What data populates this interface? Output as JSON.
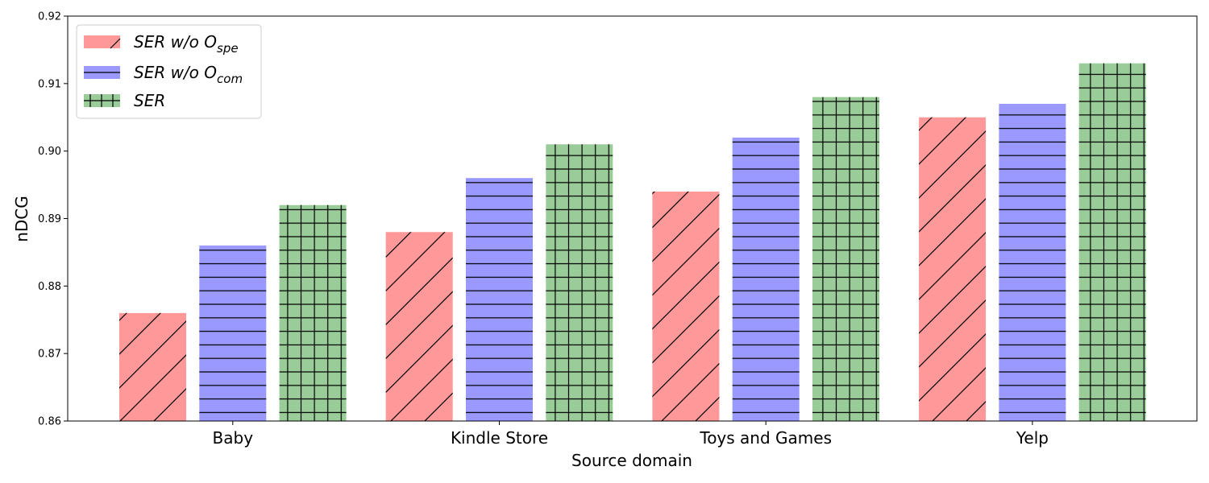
{
  "chart_data": {
    "type": "bar",
    "xlabel": "Source domain",
    "ylabel": "nDCG",
    "ylim": [
      0.86,
      0.92
    ],
    "yticks": [
      "0.86",
      "0.87",
      "0.88",
      "0.89",
      "0.90",
      "0.91",
      "0.92"
    ],
    "categories": [
      "Baby",
      "Kindle Store",
      "Toys and Games",
      "Yelp"
    ],
    "series": [
      {
        "name": "SER w/o O",
        "sub": "spe",
        "color": "#ff9999",
        "hatch": "diagonal",
        "values": [
          0.876,
          0.888,
          0.894,
          0.905
        ]
      },
      {
        "name": "SER w/o O",
        "sub": "com",
        "color": "#9999ff",
        "hatch": "horizontal",
        "values": [
          0.886,
          0.896,
          0.902,
          0.907
        ]
      },
      {
        "name": "SER",
        "sub": "",
        "color": "#99cc99",
        "hatch": "grid",
        "values": [
          0.892,
          0.901,
          0.908,
          0.913
        ]
      }
    ],
    "legend_position": "top-left",
    "grid": false
  }
}
